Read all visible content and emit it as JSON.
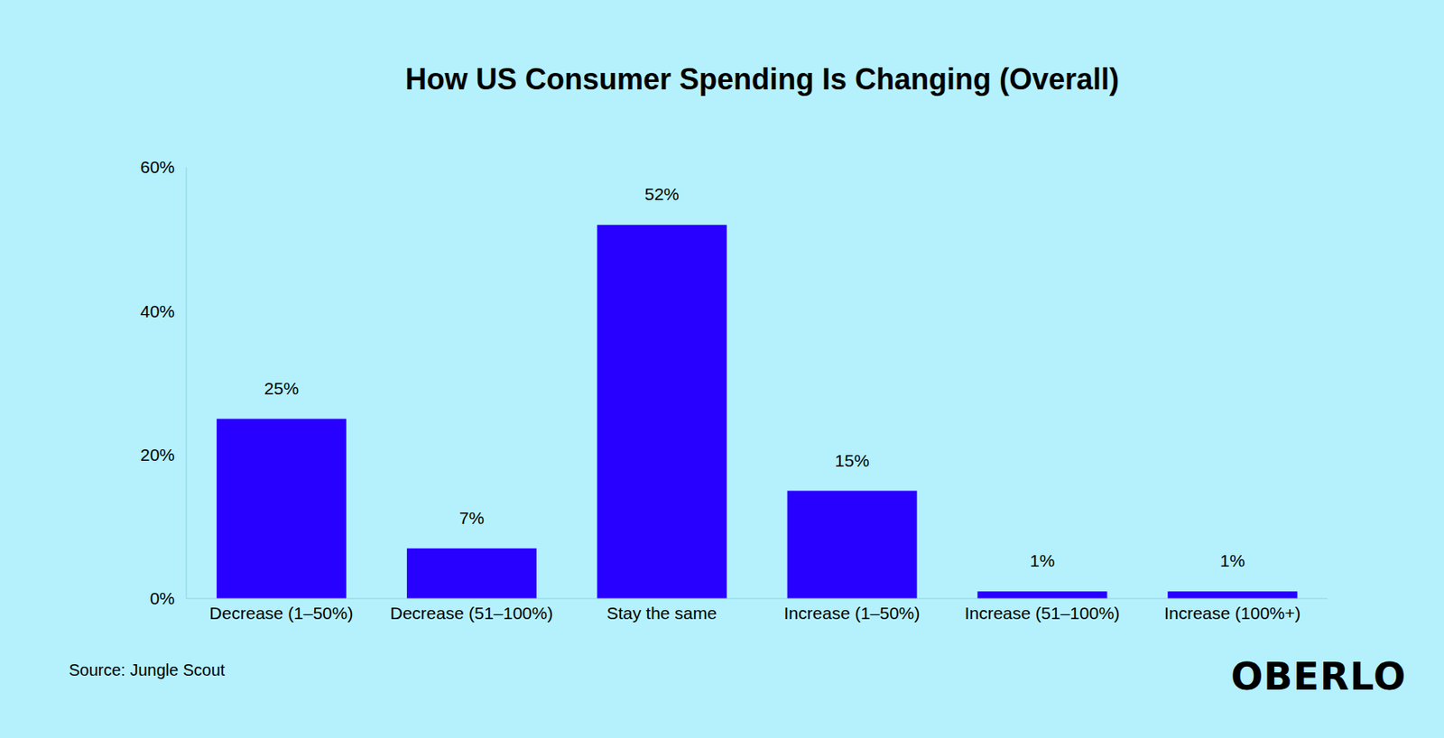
{
  "chart_data": {
    "type": "bar",
    "title": "How US Consumer Spending Is Changing (Overall)",
    "categories": [
      "Decrease (1–50%)",
      "Decrease (51–100%)",
      "Stay the same",
      "Increase (1–50%)",
      "Increase (51–100%)",
      "Increase (100%+)"
    ],
    "values": [
      25,
      7,
      52,
      15,
      1,
      1
    ],
    "value_labels": [
      "25%",
      "7%",
      "52%",
      "15%",
      "1%",
      "1%"
    ],
    "color": "#2800ff",
    "ylim": [
      0,
      60
    ],
    "yticks": [
      {
        "value": 0,
        "label": "0%"
      },
      {
        "value": 20,
        "label": "20%"
      },
      {
        "value": 40,
        "label": "40%"
      },
      {
        "value": 60,
        "label": "60%"
      }
    ],
    "grid": false,
    "data_labels": true,
    "annotations": [
      "Source: Jungle Scout",
      "OBERLO"
    ]
  }
}
